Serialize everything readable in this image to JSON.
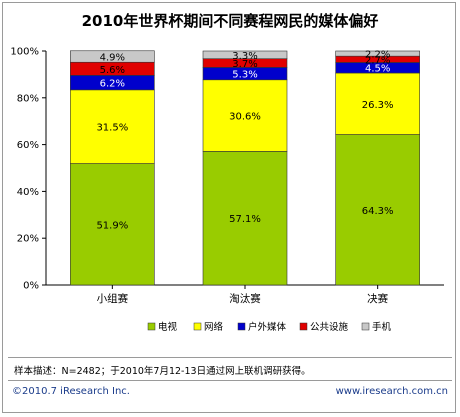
{
  "chart_data": {
    "type": "bar",
    "stacked": true,
    "title": "2010年世界杯期间不同赛程网民的媒体偏好",
    "categories": [
      "小组赛",
      "淘汰赛",
      "决赛"
    ],
    "ylim": [
      0,
      100
    ],
    "yticks": [
      "0%",
      "20%",
      "40%",
      "60%",
      "80%",
      "100%"
    ],
    "grid": false,
    "legend_position": "bottom",
    "series": [
      {
        "name": "电视",
        "color": "#99cc00",
        "values": [
          51.9,
          57.1,
          64.3
        ],
        "labels": [
          "51.9%",
          "57.1%",
          "64.3%"
        ]
      },
      {
        "name": "网络",
        "color": "#ffff00",
        "values": [
          31.5,
          30.6,
          26.3
        ],
        "labels": [
          "31.5%",
          "30.6%",
          "26.3%"
        ]
      },
      {
        "name": "户外媒体",
        "color": "#0000cc",
        "values": [
          6.2,
          5.3,
          4.5
        ],
        "labels": [
          "6.2%",
          "5.3%",
          "4.5%"
        ]
      },
      {
        "name": "公共设施",
        "color": "#e00000",
        "values": [
          5.6,
          3.7,
          2.7
        ],
        "labels": [
          "5.6%",
          "3.7%",
          "2.7%"
        ]
      },
      {
        "name": "手机",
        "color": "#c8c8c8",
        "values": [
          4.9,
          3.3,
          2.2
        ],
        "labels": [
          "4.9%",
          "3.3%",
          "2.2%"
        ]
      }
    ]
  },
  "footnote": "样本描述：N=2482；于2010年7月12-13日通过网上联机调研获得。",
  "copyright": "©2010.7 iResearch Inc.",
  "website": "www.iresearch.com.cn"
}
